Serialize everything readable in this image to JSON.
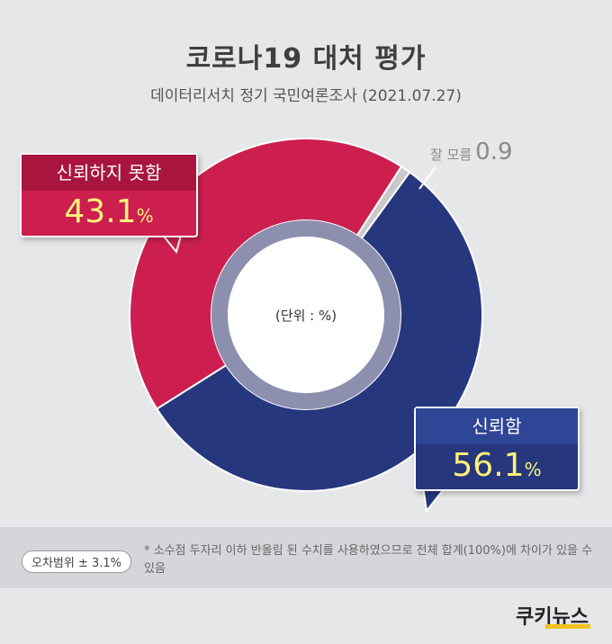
{
  "header": {
    "title": "코로나19 대처 평가",
    "subtitle": "데이터리서치 정기 국민여론조사 (2021.07.27)"
  },
  "center_label": "(단위 : %)",
  "callouts": {
    "distrust": {
      "label": "신뢰하지 못함",
      "value": "43.1",
      "unit": "%"
    },
    "trust": {
      "label": "신뢰함",
      "value": "56.1",
      "unit": "%"
    },
    "dont_know": {
      "label": "잘 모름",
      "value": "0.9"
    }
  },
  "footer": {
    "margin_of_error": "오차범위 ± 3.1%",
    "note": "* 소수점 두자리 이하 반올림 된 수치를 사용하였으므로 전체 합계(100%)에 차이가 있을 수 있음",
    "logo": "쿠키뉴스"
  },
  "colors": {
    "trust": "#26377e",
    "distrust": "#cc1f4f",
    "dont_know": "#c9c9cb",
    "inner_ring": "#8d8faf",
    "highlight": "#fff27a"
  },
  "chart_data": {
    "type": "pie",
    "title": "코로나19 대처 평가",
    "labels": [
      "신뢰함",
      "신뢰하지 못함",
      "잘 모름"
    ],
    "values": [
      56.1,
      43.1,
      0.9
    ],
    "unit": "%",
    "legend": "none"
  }
}
